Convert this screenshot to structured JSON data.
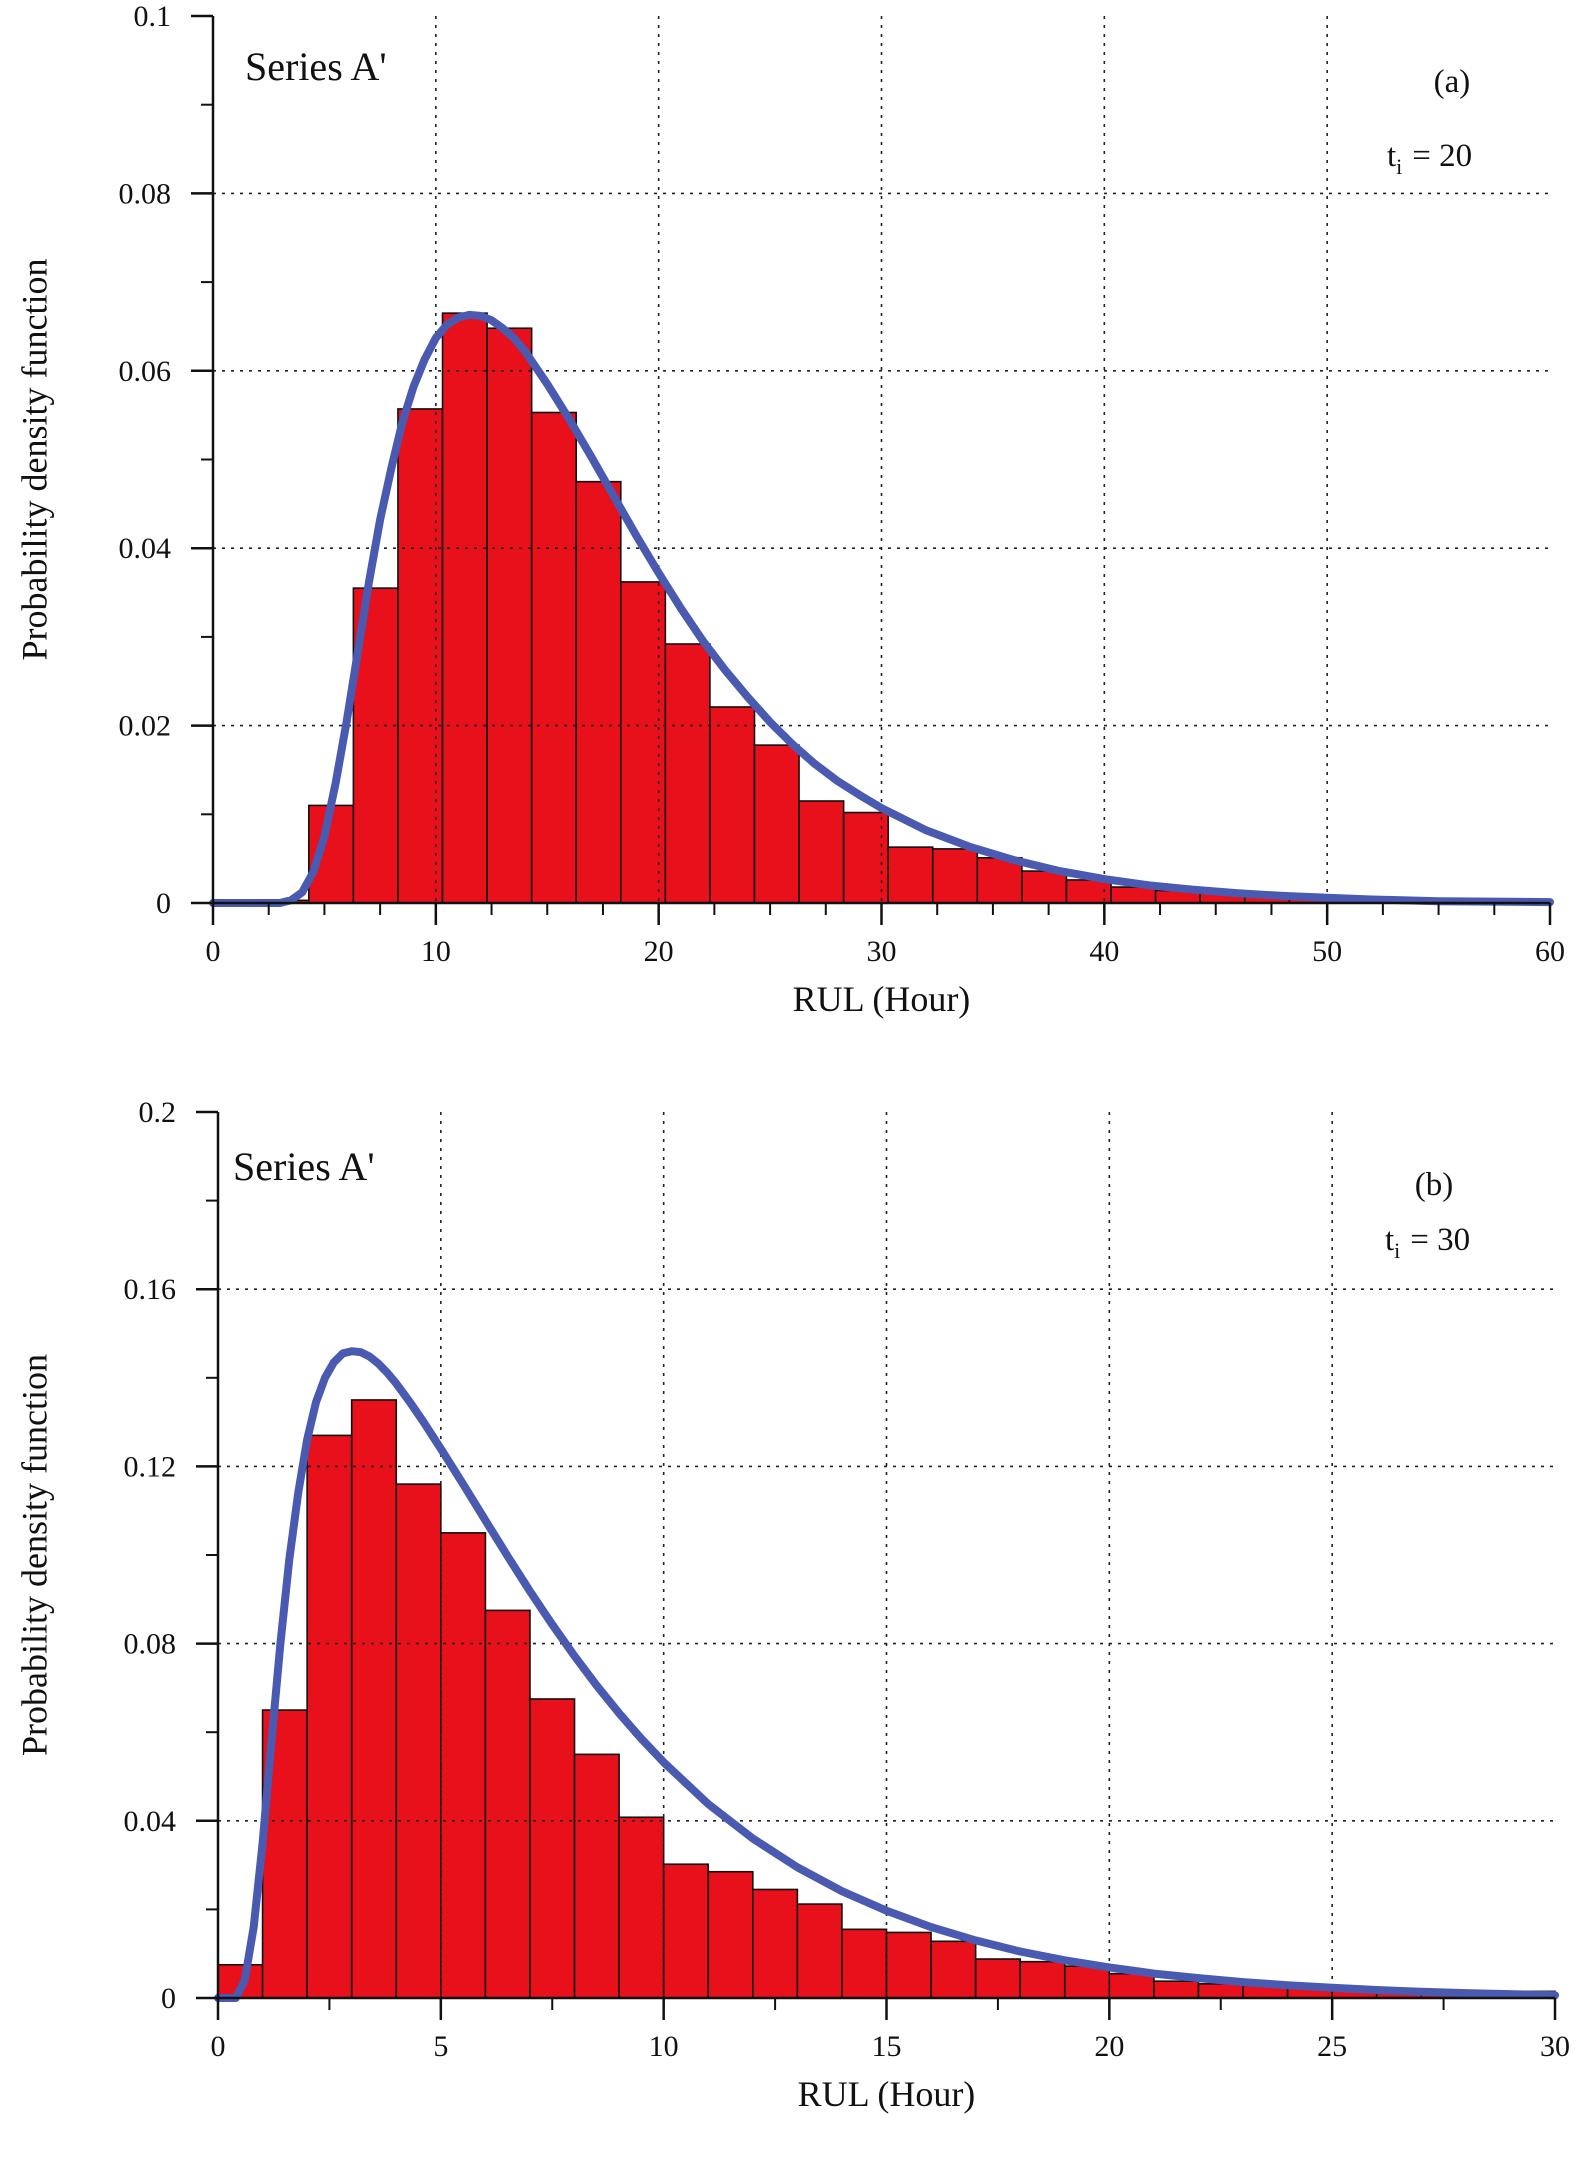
{
  "colors": {
    "bar_fill": "#e8101a",
    "bar_stroke": "#111111",
    "curve": "#4a5ab0",
    "grid": "#222222",
    "axis": "#111111"
  },
  "chart_data": [
    {
      "type": "bar",
      "panel_label": "(a)",
      "series_label": "Series A'",
      "t_sym": "t",
      "t_sub": "i",
      "t_value": "= 20",
      "xlabel": "RUL  (Hour)",
      "ylabel": "Probability density function",
      "xlim": [
        0,
        60
      ],
      "ylim": [
        0,
        0.1
      ],
      "xticks": [
        0,
        10,
        20,
        30,
        40,
        50,
        60
      ],
      "xtick_labels": [
        "0",
        "10",
        "20",
        "30",
        "40",
        "50",
        "60"
      ],
      "yticks": [
        0,
        0.02,
        0.04,
        0.06,
        0.08,
        0.1
      ],
      "ytick_labels": [
        "0",
        "0.02",
        "0.04",
        "0.06",
        "0.08",
        "0.1"
      ],
      "x_minor_step": 2.5,
      "y_minor_step": 0.01,
      "grid": true,
      "bin_width": 2.0,
      "bin_starts": [
        2.3,
        4.3,
        6.3,
        8.3,
        10.3,
        12.3,
        14.3,
        16.3,
        18.3,
        20.3,
        22.3,
        24.3,
        26.3,
        28.3,
        30.3,
        32.3,
        34.3,
        36.3,
        38.3,
        40.3,
        42.3,
        44.3,
        46.3,
        48.3,
        50.3,
        52.3
      ],
      "values": [
        0.0003,
        0.011,
        0.0355,
        0.0557,
        0.0665,
        0.0648,
        0.0553,
        0.0475,
        0.0362,
        0.0292,
        0.0221,
        0.0178,
        0.0115,
        0.0102,
        0.0063,
        0.0061,
        0.0051,
        0.0036,
        0.0026,
        0.0018,
        0.0014,
        0.0011,
        0.0008,
        0.0006,
        0.0004,
        0.0002
      ],
      "curve": {
        "x": [
          0,
          3,
          3.5,
          4,
          4.5,
          5,
          5.5,
          6,
          6.5,
          7,
          7.5,
          8,
          8.5,
          9,
          9.5,
          10,
          10.5,
          11,
          11.5,
          12,
          12.5,
          13,
          13.5,
          14,
          15,
          16,
          17,
          18,
          19,
          20,
          21,
          22,
          23,
          24,
          25,
          26,
          27,
          28,
          29,
          30,
          32,
          34,
          36,
          38,
          40,
          42,
          44,
          46,
          48,
          50,
          52,
          55,
          60
        ],
        "y": [
          0,
          0,
          0.0003,
          0.0012,
          0.0035,
          0.0075,
          0.0135,
          0.0205,
          0.0283,
          0.0362,
          0.0432,
          0.049,
          0.0542,
          0.0582,
          0.0613,
          0.0637,
          0.0652,
          0.066,
          0.0663,
          0.0662,
          0.0657,
          0.0648,
          0.0637,
          0.0622,
          0.0585,
          0.0545,
          0.0502,
          0.0458,
          0.0414,
          0.0372,
          0.0332,
          0.0295,
          0.0262,
          0.0232,
          0.0204,
          0.0179,
          0.0157,
          0.0138,
          0.0122,
          0.0107,
          0.0082,
          0.0063,
          0.0048,
          0.0036,
          0.0027,
          0.002,
          0.0015,
          0.0011,
          0.0008,
          0.0006,
          0.0004,
          0.0002,
          0.0001
        ]
      }
    },
    {
      "type": "bar",
      "panel_label": "(b)",
      "series_label": "Series A'",
      "t_sym": "t",
      "t_sub": "i",
      "t_value": "= 30",
      "xlabel": "RUL  (Hour)",
      "ylabel": "Probability density function",
      "xlim": [
        0,
        30
      ],
      "ylim": [
        0,
        0.2
      ],
      "xticks": [
        0,
        5,
        10,
        15,
        20,
        25,
        30
      ],
      "xtick_labels": [
        "0",
        "5",
        "10",
        "15",
        "20",
        "25",
        "30"
      ],
      "yticks": [
        0,
        0.04,
        0.08,
        0.12,
        0.16,
        0.2
      ],
      "ytick_labels": [
        "0",
        "0.04",
        "0.08",
        "0.12",
        "0.16",
        "0.2"
      ],
      "x_minor_step": 2.5,
      "y_minor_step": 0.02,
      "grid": true,
      "bin_width": 1.0,
      "bin_starts": [
        0,
        1,
        2,
        3,
        4,
        5,
        6,
        7,
        8,
        9,
        10,
        11,
        12,
        13,
        14,
        15,
        16,
        17,
        18,
        19,
        20,
        21,
        22,
        23,
        24,
        25,
        26,
        27,
        28,
        29
      ],
      "values": [
        0.0075,
        0.065,
        0.127,
        0.135,
        0.116,
        0.105,
        0.0875,
        0.0675,
        0.055,
        0.0408,
        0.0302,
        0.0285,
        0.0245,
        0.0212,
        0.0155,
        0.0148,
        0.0128,
        0.0088,
        0.0082,
        0.0072,
        0.0055,
        0.0038,
        0.0032,
        0.0028,
        0.0025,
        0.0022,
        0.0018,
        0.0012,
        0.0008,
        0.0015
      ],
      "curve": {
        "x": [
          0,
          0.4,
          0.6,
          0.8,
          1.0,
          1.2,
          1.4,
          1.6,
          1.8,
          2.0,
          2.2,
          2.4,
          2.6,
          2.8,
          3.0,
          3.2,
          3.4,
          3.6,
          3.8,
          4.0,
          4.3,
          4.6,
          5.0,
          5.5,
          6.0,
          6.5,
          7.0,
          7.5,
          8.0,
          8.5,
          9.0,
          9.5,
          10,
          11,
          12,
          13,
          14,
          15,
          16,
          17,
          18,
          19,
          20,
          21,
          22,
          23,
          24,
          25,
          26,
          27,
          28,
          30
        ],
        "y": [
          0,
          0,
          0.004,
          0.016,
          0.035,
          0.058,
          0.08,
          0.099,
          0.114,
          0.126,
          0.1345,
          0.14,
          0.1435,
          0.1455,
          0.146,
          0.1458,
          0.1448,
          0.1432,
          0.1411,
          0.1387,
          0.1346,
          0.1302,
          0.124,
          0.116,
          0.1078,
          0.0997,
          0.0918,
          0.0843,
          0.0772,
          0.0705,
          0.0643,
          0.0585,
          0.0532,
          0.0438,
          0.036,
          0.0295,
          0.0241,
          0.0197,
          0.016,
          0.013,
          0.0105,
          0.0085,
          0.0069,
          0.0055,
          0.0045,
          0.0036,
          0.0029,
          0.0023,
          0.0018,
          0.0014,
          0.0011,
          0.0006
        ]
      }
    }
  ]
}
